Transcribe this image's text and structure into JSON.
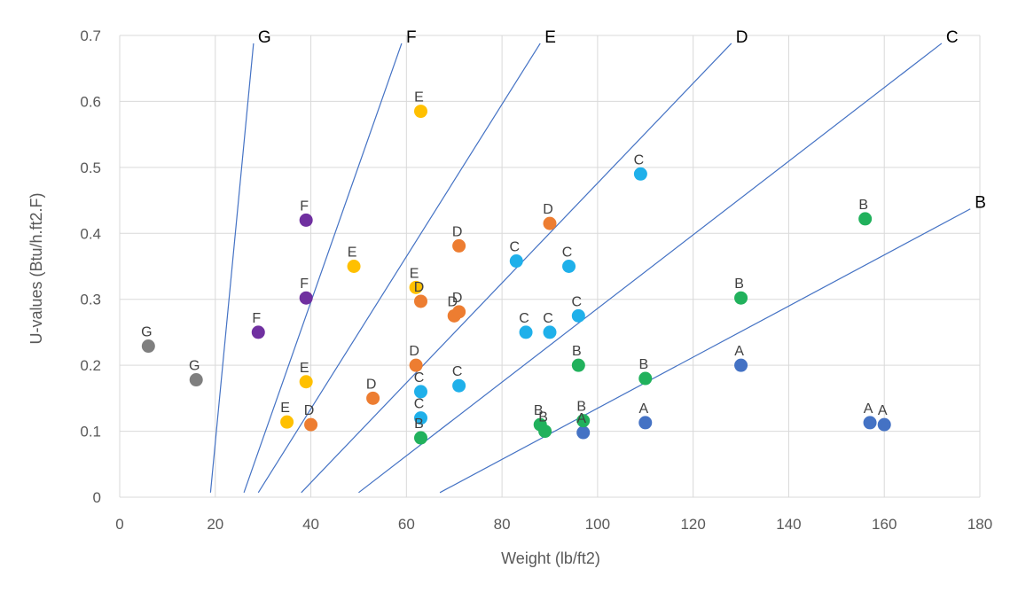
{
  "chart_data": {
    "type": "scatter",
    "xlabel": "Weight (lb/ft2)",
    "ylabel": "U-values (Btu/h.ft2.F)",
    "xlim": [
      0,
      180
    ],
    "ylim": [
      0,
      0.7
    ],
    "x_ticks": [
      "0",
      "20",
      "40",
      "60",
      "80",
      "100",
      "120",
      "140",
      "160",
      "180"
    ],
    "y_ticks": [
      "0",
      "0.1",
      "0.2",
      "0.3",
      "0.4",
      "0.5",
      "0.6",
      "0.7"
    ],
    "grid": "vertical and horizontal",
    "legend": "none",
    "class_colors": {
      "A": "#4472c4",
      "B": "#21b15c",
      "C": "#1fb0ea",
      "D": "#ed7d31",
      "E": "#ffc000",
      "F": "#7030a0",
      "G": "#7f7f7f"
    },
    "points": [
      {
        "label": "A",
        "x": 97,
        "y": 0.098
      },
      {
        "label": "A",
        "x": 110,
        "y": 0.113
      },
      {
        "label": "A",
        "x": 130,
        "y": 0.2
      },
      {
        "label": "A",
        "x": 157,
        "y": 0.113
      },
      {
        "label": "A",
        "x": 160,
        "y": 0.11
      },
      {
        "label": "B",
        "x": 63,
        "y": 0.09
      },
      {
        "label": "B",
        "x": 88,
        "y": 0.11
      },
      {
        "label": "B",
        "x": 89,
        "y": 0.1
      },
      {
        "label": "B",
        "x": 97,
        "y": 0.116
      },
      {
        "label": "B",
        "x": 96,
        "y": 0.2
      },
      {
        "label": "B",
        "x": 110,
        "y": 0.18
      },
      {
        "label": "B",
        "x": 130,
        "y": 0.302
      },
      {
        "label": "B",
        "x": 156,
        "y": 0.422
      },
      {
        "label": "C",
        "x": 63,
        "y": 0.12
      },
      {
        "label": "C",
        "x": 63,
        "y": 0.16
      },
      {
        "label": "C",
        "x": 71,
        "y": 0.169
      },
      {
        "label": "C",
        "x": 85,
        "y": 0.25
      },
      {
        "label": "C",
        "x": 90,
        "y": 0.25
      },
      {
        "label": "C",
        "x": 96,
        "y": 0.275
      },
      {
        "label": "C",
        "x": 83,
        "y": 0.358
      },
      {
        "label": "C",
        "x": 94,
        "y": 0.35
      },
      {
        "label": "C",
        "x": 109,
        "y": 0.49
      },
      {
        "label": "D",
        "x": 40,
        "y": 0.11
      },
      {
        "label": "D",
        "x": 53,
        "y": 0.15
      },
      {
        "label": "D",
        "x": 62,
        "y": 0.2
      },
      {
        "label": "D",
        "x": 63,
        "y": 0.297
      },
      {
        "label": "D",
        "x": 70,
        "y": 0.275
      },
      {
        "label": "D",
        "x": 71,
        "y": 0.281
      },
      {
        "label": "D",
        "x": 71,
        "y": 0.381
      },
      {
        "label": "D",
        "x": 90,
        "y": 0.415
      },
      {
        "label": "E",
        "x": 35,
        "y": 0.114
      },
      {
        "label": "E",
        "x": 39,
        "y": 0.175
      },
      {
        "label": "E",
        "x": 49,
        "y": 0.35
      },
      {
        "label": "E",
        "x": 62,
        "y": 0.318
      },
      {
        "label": "E",
        "x": 63,
        "y": 0.585
      },
      {
        "label": "F",
        "x": 29,
        "y": 0.25
      },
      {
        "label": "F",
        "x": 39,
        "y": 0.302
      },
      {
        "label": "F",
        "x": 39,
        "y": 0.42
      },
      {
        "label": "G",
        "x": 6,
        "y": 0.229
      },
      {
        "label": "G",
        "x": 16,
        "y": 0.178
      }
    ],
    "boundary_lines": [
      {
        "label": "G",
        "start": [
          19,
          0.007
        ],
        "end": [
          28,
          0.688
        ]
      },
      {
        "label": "F",
        "start": [
          26,
          0.007
        ],
        "end": [
          59,
          0.688
        ]
      },
      {
        "label": "E",
        "start": [
          29,
          0.007
        ],
        "end": [
          88,
          0.688
        ]
      },
      {
        "label": "D",
        "start": [
          38,
          0.007
        ],
        "end": [
          128,
          0.688
        ]
      },
      {
        "label": "C",
        "start": [
          50,
          0.007
        ],
        "end": [
          172,
          0.688
        ]
      },
      {
        "label": "B",
        "start": [
          67,
          0.007
        ],
        "end": [
          178,
          0.437
        ]
      }
    ]
  }
}
